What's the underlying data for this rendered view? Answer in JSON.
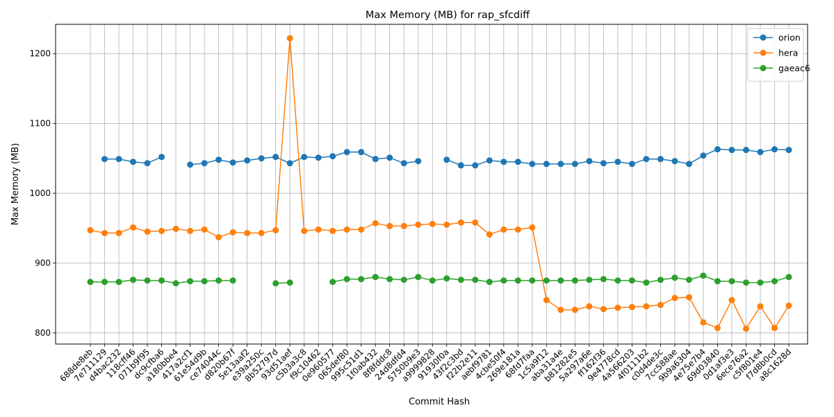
{
  "chart_data": {
    "type": "line",
    "title": "Max Memory (MB) for rap_sfcdiff",
    "xlabel": "Commit Hash",
    "ylabel": "Max Memory (MB)",
    "ylim": [
      784,
      1242
    ],
    "yticks": [
      800,
      900,
      1000,
      1100,
      1200
    ],
    "grid": true,
    "legend_position": "top-right",
    "categories": [
      "688de8eb",
      "7e711129",
      "d4bac232",
      "118cff46",
      "071b9f95",
      "dc9cfba6",
      "a180bbe4",
      "417a2cf1",
      "61e54d9b",
      "ce74044c",
      "d820b67f",
      "5e13aaf2",
      "e39a250c",
      "8b52797d",
      "93d51aef",
      "c5b3a3c8",
      "f9c10462",
      "0e960577",
      "065def80",
      "995c51d1",
      "1f0ab432",
      "8f8fddc8",
      "24d8dfd4",
      "5750b9e3",
      "a9999828",
      "91930f0a",
      "43f2c3bd",
      "f22b2e11",
      "aebf9781",
      "4cbe50f4",
      "269e181a",
      "68fd7faa",
      "1c5a9f12",
      "aba31a4e",
      "b81282e5",
      "5a297a6e",
      "ff162f36",
      "9e4778cd",
      "4a566203",
      "4f0111b2",
      "c0d4de3c",
      "7cc588ae",
      "9b9a6304",
      "4e75e7b4",
      "69d03840",
      "0d1af3e3",
      "6ece76a2",
      "c5f801e4",
      "f7d8b0cd",
      "a8c1628d"
    ],
    "series": [
      {
        "name": "orion",
        "color": "#1f77b4",
        "values": [
          null,
          1049,
          1049,
          1045,
          1043,
          1052,
          null,
          1041,
          1043,
          1048,
          1044,
          1047,
          1050,
          1052,
          1043,
          1052,
          1051,
          1053,
          1059,
          1059,
          1049,
          1051,
          1043,
          1046,
          null,
          1048,
          1040,
          1040,
          1047,
          1045,
          1045,
          1042,
          1042,
          1042,
          1042,
          1046,
          1043,
          1045,
          1042,
          1049,
          1049,
          1046,
          1042,
          1054,
          1063,
          1062,
          1062,
          1059,
          1063,
          1062
        ]
      },
      {
        "name": "hera",
        "color": "#ff7f0e",
        "values": [
          947,
          943,
          943,
          951,
          945,
          946,
          949,
          946,
          948,
          937,
          944,
          943,
          943,
          947,
          1222,
          946,
          948,
          946,
          948,
          948,
          957,
          953,
          953,
          955,
          956,
          955,
          958,
          958,
          941,
          948,
          948,
          951,
          847,
          833,
          833,
          838,
          834,
          836,
          837,
          838,
          840,
          850,
          851,
          815,
          807,
          847,
          806,
          838,
          807,
          839
        ]
      },
      {
        "name": "gaeac6",
        "color": "#2ca02c",
        "values": [
          873,
          873,
          873,
          876,
          875,
          875,
          871,
          874,
          874,
          875,
          875,
          null,
          null,
          871,
          872,
          null,
          null,
          873,
          877,
          877,
          880,
          877,
          876,
          880,
          875,
          878,
          876,
          876,
          873,
          875,
          875,
          875,
          875,
          875,
          875,
          876,
          877,
          875,
          875,
          872,
          876,
          879,
          876,
          882,
          874,
          874,
          872,
          872,
          874,
          880
        ]
      }
    ]
  }
}
